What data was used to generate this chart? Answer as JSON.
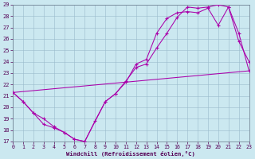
{
  "xlabel": "Windchill (Refroidissement éolien,°C)",
  "bg_color": "#cbe8f0",
  "line_color": "#aa00aa",
  "grid_color": "#99bbcc",
  "ylim": [
    17,
    29
  ],
  "xlim": [
    0,
    23
  ],
  "yticks": [
    17,
    18,
    19,
    20,
    21,
    22,
    23,
    24,
    25,
    26,
    27,
    28,
    29
  ],
  "xticks": [
    0,
    1,
    2,
    3,
    4,
    5,
    6,
    7,
    8,
    9,
    10,
    11,
    12,
    13,
    14,
    15,
    16,
    17,
    18,
    19,
    20,
    21,
    22,
    23
  ],
  "line1_x": [
    0,
    1,
    2,
    3,
    4,
    5,
    6,
    7,
    8,
    9,
    10,
    11,
    12,
    13,
    14,
    15,
    16,
    17,
    18,
    19,
    20,
    21,
    22,
    23
  ],
  "line1_y": [
    21.3,
    20.5,
    19.5,
    19.0,
    18.3,
    17.8,
    17.2,
    17.0,
    18.8,
    20.5,
    21.2,
    22.3,
    23.5,
    23.8,
    25.2,
    26.5,
    27.9,
    28.8,
    28.7,
    28.8,
    29.0,
    28.8,
    25.8,
    24.0
  ],
  "line2_x": [
    0,
    1,
    2,
    3,
    4,
    5,
    6,
    7,
    9,
    10,
    11,
    12,
    13,
    14,
    15,
    16,
    17,
    18,
    19,
    20,
    21,
    22,
    23
  ],
  "line2_y": [
    21.3,
    20.5,
    19.5,
    18.5,
    18.2,
    17.8,
    17.2,
    17.0,
    20.5,
    21.2,
    22.2,
    23.8,
    24.2,
    26.5,
    27.8,
    28.3,
    28.4,
    28.3,
    28.7,
    27.2,
    28.8,
    26.5,
    23.2
  ],
  "line3_x": [
    0,
    23
  ],
  "line3_y": [
    21.3,
    23.2
  ]
}
